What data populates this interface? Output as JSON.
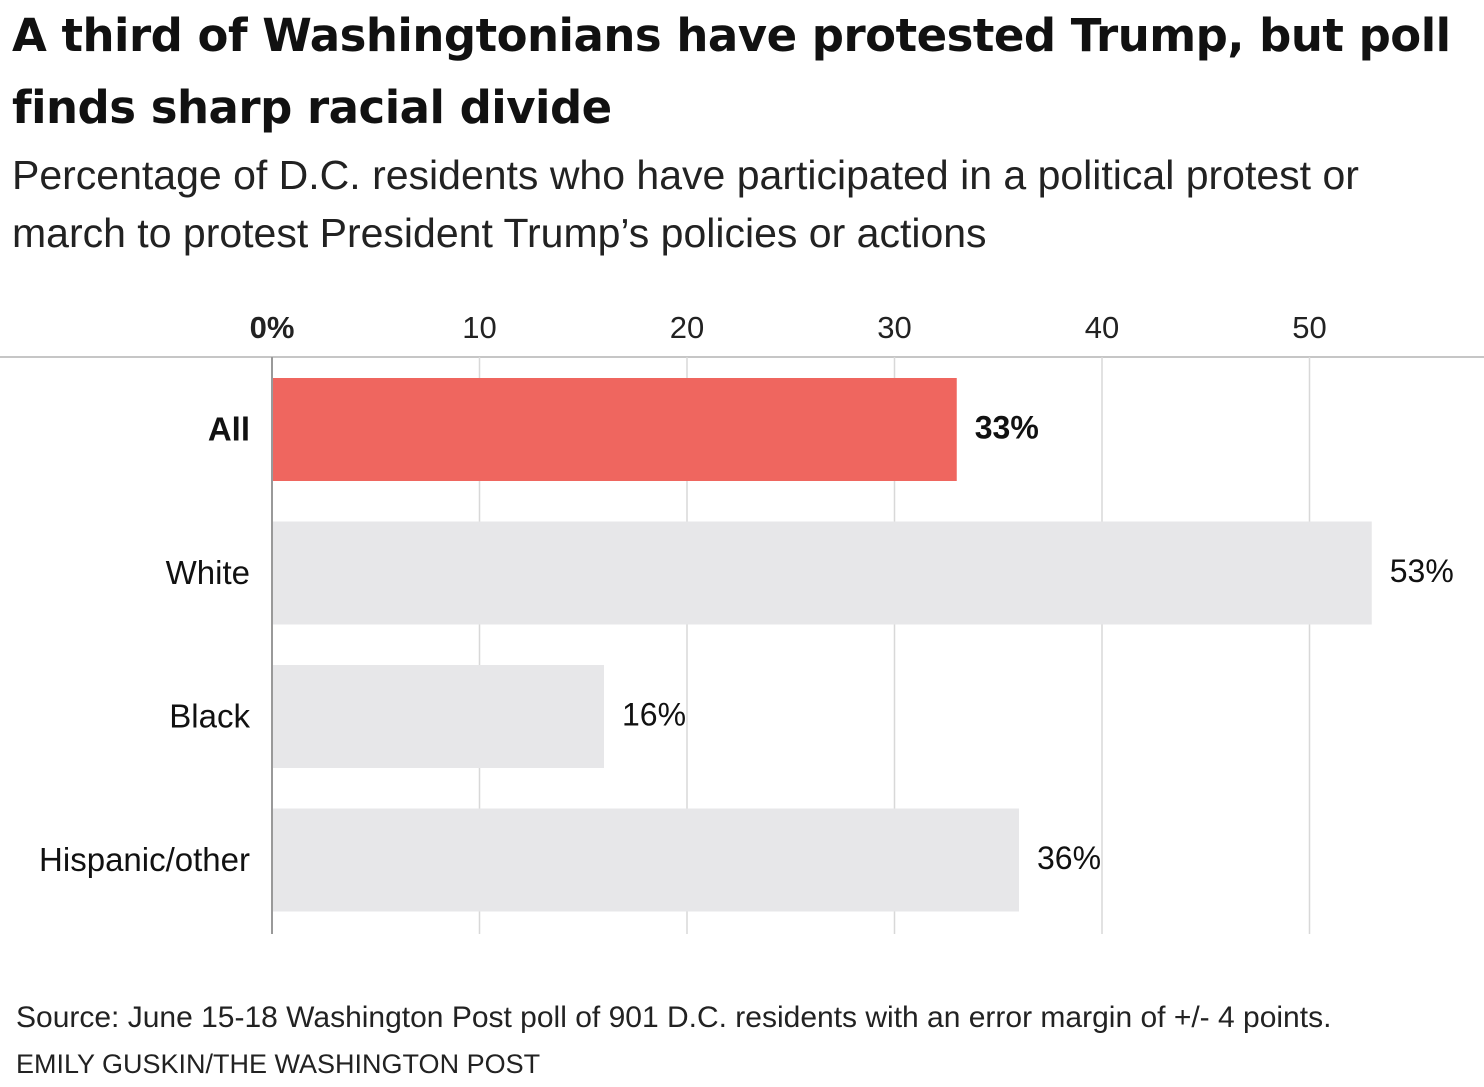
{
  "chart_data": {
    "type": "bar",
    "orientation": "horizontal",
    "title": "A third of Washingtonians have protested Trump, but poll finds sharp racial divide",
    "subtitle": "Percentage of D.C. residents who have participated in a political protest or march to protest President Trump’s policies or actions",
    "categories": [
      "All",
      "White",
      "Black",
      "Hispanic/other"
    ],
    "values": [
      33,
      53,
      16,
      36
    ],
    "value_labels": [
      "33%",
      "53%",
      "16%",
      "36%"
    ],
    "highlight_index": 0,
    "xlim": [
      0,
      55
    ],
    "x_ticks": [
      0,
      10,
      20,
      30,
      40,
      50
    ],
    "x_tick_labels": [
      "0%",
      "10",
      "20",
      "30",
      "40",
      "50"
    ],
    "axis_position": "top",
    "grid": true,
    "colors": {
      "highlight": "#ef665f",
      "default": "#e7e7e9",
      "grid": "#d8d8d8",
      "axis": "#999999"
    }
  },
  "footer": {
    "source": "Source: June 15-18 Washington Post poll of 901 D.C. residents with an error margin of +/- 4 points.",
    "credit": "EMILY GUSKIN/THE WASHINGTON POST"
  }
}
